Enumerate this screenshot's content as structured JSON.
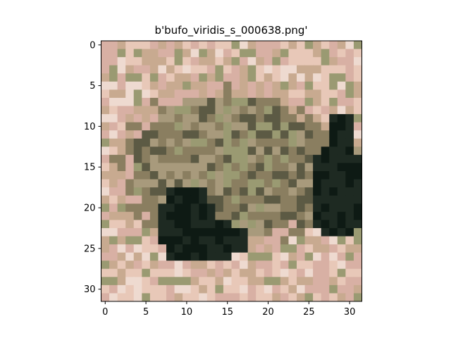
{
  "chart_data": {
    "type": "heatmap",
    "title": "b'bufo_viridis_s_000638.png'",
    "xlabel": "",
    "ylabel": "",
    "xlim": [
      -0.5,
      31.5
    ],
    "ylim": [
      31.5,
      -0.5
    ],
    "grid": false,
    "x_ticks": [
      0,
      5,
      10,
      15,
      20,
      25,
      30
    ],
    "y_ticks": [
      0,
      5,
      10,
      15,
      20,
      25,
      30
    ],
    "x_tick_labels": [
      "0",
      "5",
      "10",
      "15",
      "20",
      "25",
      "30"
    ],
    "y_tick_labels": [
      "0",
      "5",
      "10",
      "15",
      "20",
      "25",
      "30"
    ],
    "image_size": [
      32,
      32
    ],
    "palette": {
      "bg_light": "#e8c8b8",
      "bg_pink": "#d8b0a4",
      "bg_tan": "#c8aa90",
      "toad_light": "#a89a7c",
      "toad_mid": "#8a7e60",
      "toad_dark": "#5c5a44",
      "shadow": "#1e2a22",
      "deep_shadow": "#0e1a14",
      "olive": "#9a9a72",
      "rock_pale": "#eedad0"
    }
  },
  "figure": {
    "background": "#ffffff",
    "axis_color": "#000000"
  }
}
